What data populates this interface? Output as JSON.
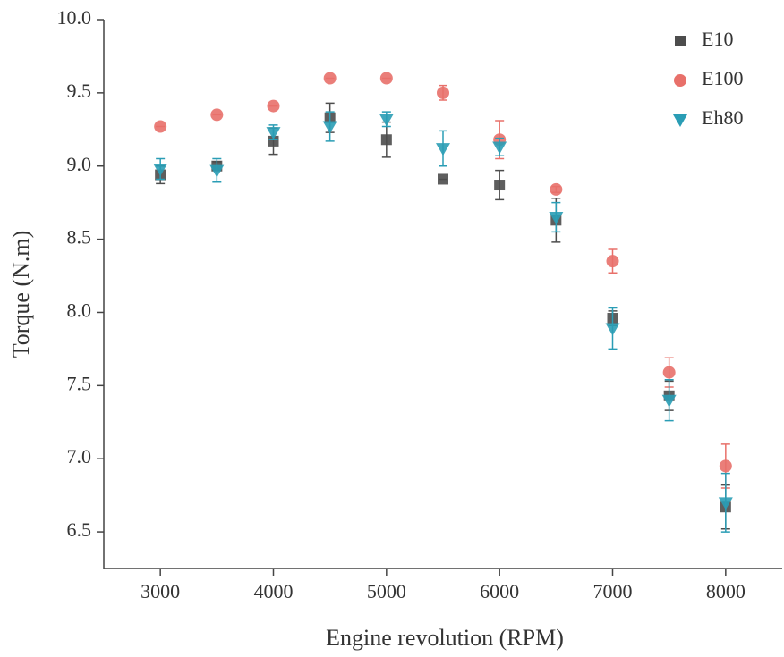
{
  "chart_data": {
    "type": "scatter",
    "x_label": "Engine revolution (RPM)",
    "y_label": "Torque (N.m)",
    "x": [
      3000,
      3500,
      4000,
      4500,
      5000,
      5500,
      6000,
      6500,
      7000,
      7500,
      8000
    ],
    "xlim": [
      2500,
      8500
    ],
    "xticks": [
      3000,
      4000,
      5000,
      6000,
      7000,
      8000
    ],
    "ylim": [
      6.25,
      10.0
    ],
    "yticks": [
      6.5,
      {
        "value": 7,
        "label": "7.0"
      },
      7.5,
      {
        "value": 8,
        "label": "8.0"
      },
      8.5,
      {
        "value": 9,
        "label": "9.0"
      },
      9.5,
      {
        "value": 10,
        "label": "10.0"
      }
    ],
    "grid": false,
    "legend": "top-right",
    "series": [
      {
        "name": "E10",
        "color": "#4d4d4d",
        "marker": "square",
        "values": [
          8.94,
          9.0,
          9.17,
          9.33,
          9.18,
          8.91,
          8.87,
          8.63,
          7.96,
          7.43,
          6.67
        ],
        "errors": [
          0.06,
          0.03,
          0.09,
          0.1,
          0.12,
          0.0,
          0.1,
          0.15,
          0.05,
          0.1,
          0.15
        ]
      },
      {
        "name": "E100",
        "color": "#e8706a",
        "marker": "circle",
        "values": [
          9.27,
          9.35,
          9.41,
          9.6,
          9.6,
          9.5,
          9.18,
          8.84,
          8.35,
          7.59,
          6.95
        ],
        "errors": [
          0.0,
          0.0,
          0.0,
          0.0,
          0.0,
          0.05,
          0.13,
          0.02,
          0.08,
          0.1,
          0.15
        ]
      },
      {
        "name": "Eh80",
        "color": "#2a9db5",
        "marker": "triangle-down",
        "values": [
          8.98,
          8.97,
          9.23,
          9.27,
          9.32,
          9.12,
          9.13,
          8.65,
          7.89,
          7.4,
          6.7
        ],
        "errors": [
          0.07,
          0.08,
          0.05,
          0.1,
          0.05,
          0.12,
          0.06,
          0.1,
          0.14,
          0.14,
          0.2
        ]
      }
    ]
  }
}
